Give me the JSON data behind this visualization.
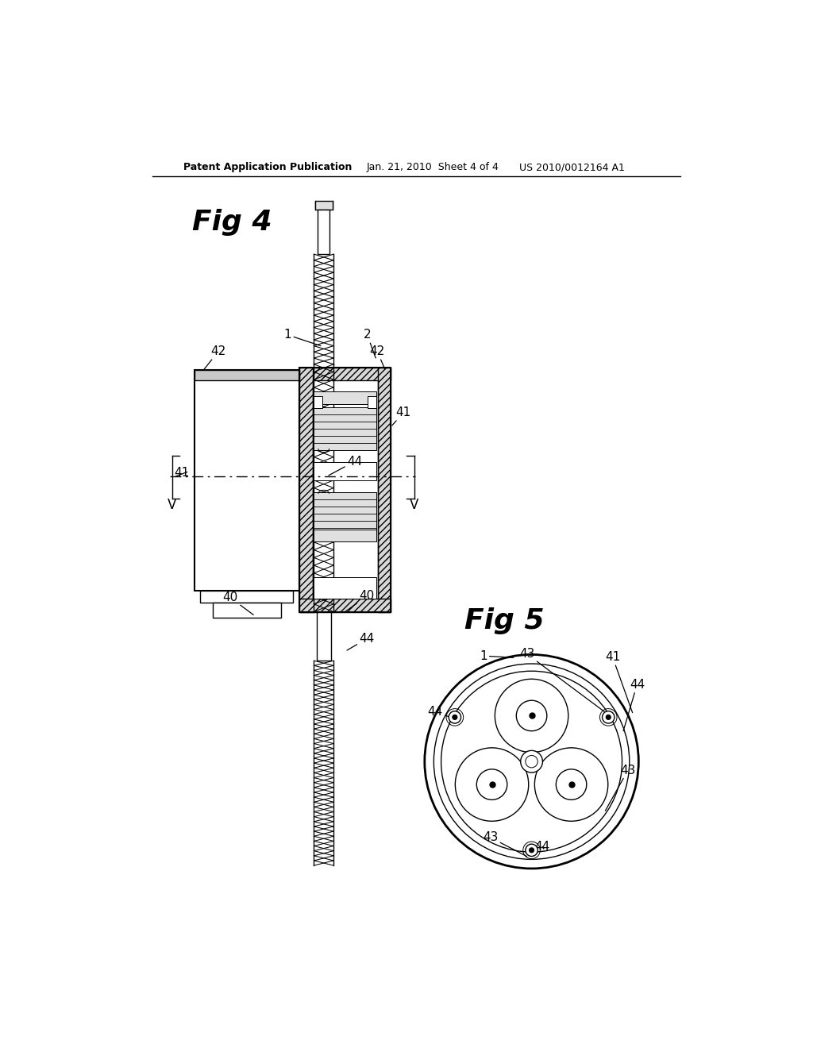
{
  "bg_color": "#ffffff",
  "line_color": "#000000",
  "header_text_left": "Patent Application Publication",
  "header_text_mid": "Jan. 21, 2010  Sheet 4 of 4",
  "header_text_right": "US 2010/0012164 A1",
  "fig4_label": "Fig 4",
  "fig5_label": "Fig 5",
  "gray_fill": "#c8c8c8",
  "light_gray": "#e0e0e0",
  "hatch_gray": "#d8d8d8"
}
